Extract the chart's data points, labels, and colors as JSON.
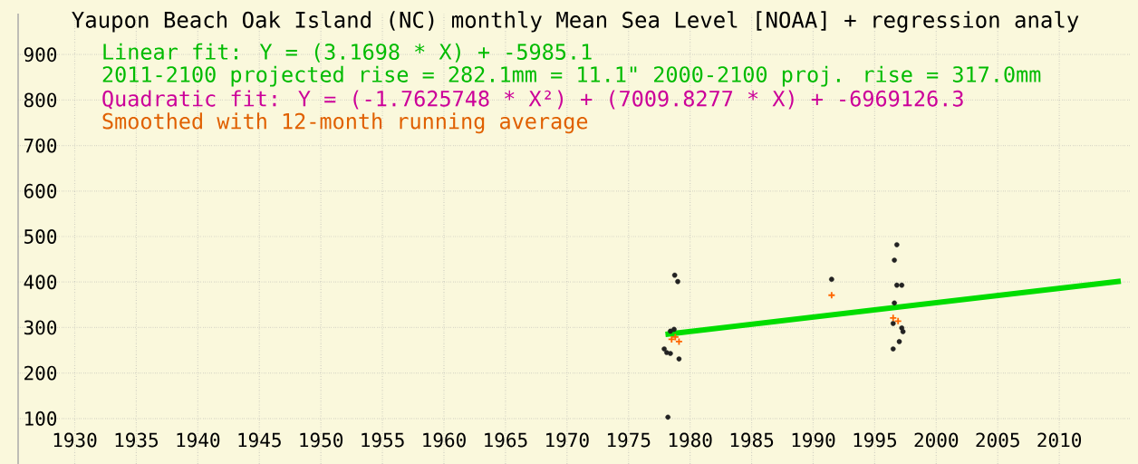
{
  "chart_data": {
    "type": "scatter",
    "title": "Yaupon Beach Oak Island (NC) monthly Mean Sea Level [NOAA] + regression analy",
    "annotations": [
      "Linear fit:  Y = (3.1698 * X) + -5985.1",
      "2011-2100 projected rise = 282.1mm = 11.1\"   2000-2100 proj. rise = 317.0mm",
      "Quadratic fit:  Y = (-1.7625748 * X²) + (7009.8277 * X) + -6969126.3",
      "Smoothed with 12-month running average"
    ],
    "series": [
      {
        "marker": "circle",
        "color": "#222222",
        "x": [
          1977.9,
          1978.1,
          1978.2,
          1978.4,
          1978.4,
          1978.7,
          1978.75,
          1979.0,
          1979.1,
          1991.5,
          1996.5,
          1996.5,
          1996.6,
          1996.6,
          1996.8,
          1996.8,
          1997.0,
          1997.2,
          1997.2,
          1997.3
        ],
        "values": [
          253,
          245,
          103,
          243,
          292,
          296,
          415,
          401,
          231,
          406,
          309,
          253,
          354,
          448,
          482,
          393,
          269,
          393,
          299,
          291
        ]
      },
      {
        "marker": "cross",
        "color": "#ff6600",
        "x": [
          1978.5,
          1978.8,
          1979.1,
          1991.5,
          1996.5,
          1996.9
        ],
        "values": [
          274,
          279,
          269,
          371,
          321,
          314
        ]
      },
      {
        "type": "line",
        "marker": "none",
        "color": "#00dd00",
        "x": [
          1978,
          2015
        ],
        "values": [
          285,
          402
        ]
      }
    ],
    "xlim": [
      1925.4,
      2015.8
    ],
    "ylim": [
      0,
      990
    ],
    "xticks": [
      1930,
      1935,
      1940,
      1945,
      1950,
      1955,
      1960,
      1965,
      1970,
      1975,
      1980,
      1985,
      1990,
      1995,
      2000,
      2005,
      2010
    ],
    "yticks": [
      100,
      200,
      300,
      400,
      500,
      600,
      700,
      800,
      900
    ],
    "grid": true
  }
}
